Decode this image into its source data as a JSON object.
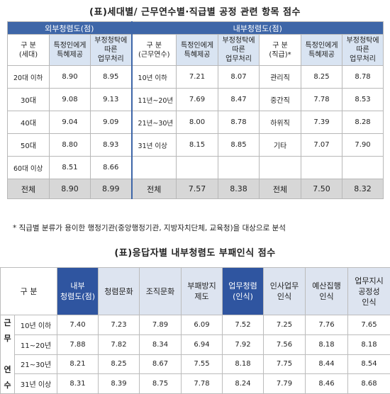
{
  "title1": "(표)세대별/ 근무연수별·직급별 공정 관련 항목 점수",
  "t1": {
    "group_headers": [
      "외부청렴도(점)",
      "내부청렴도(점)"
    ],
    "cols": {
      "gubun_gen": "구 분\n(세대)",
      "gubun_years": "구 분\n(근무연수)",
      "gubun_rank": "구 분\n(직급)*",
      "special": "특정인에게\n특혜제공",
      "improper": "부정청탁에\n따른\n업무처리"
    },
    "rows": [
      [
        "20대 이하",
        "8.90",
        "8.95",
        "10년 이하",
        "7.21",
        "8.07",
        "관리직",
        "8.25",
        "8.78"
      ],
      [
        "30대",
        "9.08",
        "9.13",
        "11년~20년",
        "7.69",
        "8.47",
        "중간직",
        "7.78",
        "8.53"
      ],
      [
        "40대",
        "9.04",
        "9.09",
        "21년~30년",
        "8.00",
        "8.78",
        "하위직",
        "7.39",
        "8.28"
      ],
      [
        "50대",
        "8.80",
        "8.93",
        "31년 이상",
        "8.15",
        "8.85",
        "기타",
        "7.07",
        "7.90"
      ],
      [
        "60대 이상",
        "8.51",
        "8.66",
        "",
        "",
        "",
        "",
        "",
        ""
      ]
    ],
    "total": [
      "전체",
      "8.90",
      "8.99",
      "전체",
      "7.57",
      "8.38",
      "전체",
      "7.50",
      "8.32"
    ]
  },
  "note": "* 직급별 분류가 용이한 행정기관(중앙행정기관, 지방자치단체, 교육청)을 대상으로 분석",
  "title2": "(표)응답자별 내부청렴도 부패인식 점수",
  "t2": {
    "gubun": "구 분",
    "side_label": "근\n무\n\n연\n수",
    "headers": [
      "내부\n청렴도(점)",
      "청렴문화",
      "조직문화",
      "부패방지\n제도",
      "업무청렴\n(인식)",
      "인사업무\n인식",
      "예산집행\n인식",
      "업무지시\n공정성\n인식"
    ],
    "rows": [
      [
        "10년 이하",
        "7.40",
        "7.23",
        "7.89",
        "6.09",
        "7.52",
        "7.25",
        "7.76",
        "7.65"
      ],
      [
        "11~20년",
        "7.88",
        "7.82",
        "8.34",
        "6.94",
        "7.92",
        "7.56",
        "8.18",
        "8.18"
      ],
      [
        "21~30년",
        "8.21",
        "8.25",
        "8.67",
        "7.55",
        "8.18",
        "7.75",
        "8.44",
        "8.54"
      ],
      [
        "31년 이상",
        "8.31",
        "8.39",
        "8.75",
        "7.78",
        "8.24",
        "7.79",
        "8.46",
        "8.68"
      ]
    ]
  }
}
